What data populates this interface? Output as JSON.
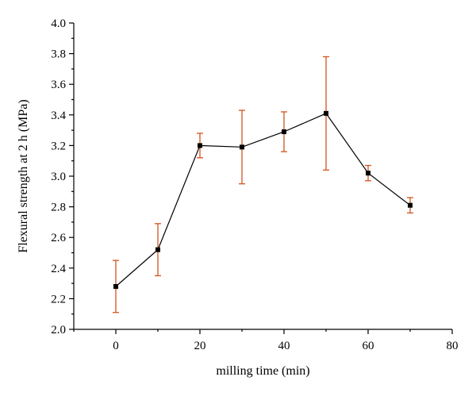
{
  "chart_data": {
    "type": "line",
    "title": "",
    "xlabel": "milling time (min)",
    "ylabel": "Flexural strength at 2 h (MPa)",
    "xlim": [
      -10,
      80
    ],
    "ylim": [
      2.0,
      4.0
    ],
    "x_ticks": [
      0,
      20,
      40,
      60,
      80
    ],
    "x_tick_labels": [
      "0",
      "20",
      "40",
      "60",
      "80"
    ],
    "y_ticks": [
      2.0,
      2.2,
      2.4,
      2.6,
      2.8,
      3.0,
      3.2,
      3.4,
      3.6,
      3.8,
      4.0
    ],
    "y_tick_labels": [
      "2.0",
      "2.2",
      "2.4",
      "2.6",
      "2.8",
      "3.0",
      "3.2",
      "3.4",
      "3.6",
      "3.8",
      "4.0"
    ],
    "grid": false,
    "legend": "none",
    "series": [
      {
        "x": [
          0,
          10,
          20,
          30,
          40,
          50,
          60,
          70
        ],
        "y": [
          2.28,
          2.52,
          3.2,
          3.19,
          3.29,
          3.41,
          3.02,
          2.81
        ],
        "error_upper": [
          2.45,
          2.69,
          3.28,
          3.43,
          3.42,
          3.78,
          3.07,
          2.86
        ],
        "error_lower": [
          2.11,
          2.35,
          3.12,
          2.95,
          3.16,
          3.04,
          2.97,
          2.76
        ],
        "line_color": "#000000",
        "marker_color": "#000000",
        "error_color": "#d2541e"
      }
    ]
  }
}
